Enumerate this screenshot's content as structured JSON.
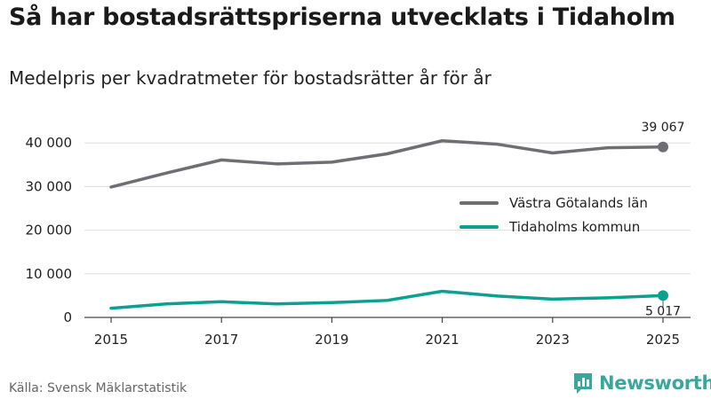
{
  "title": "Så har bostadsrättspriserna utvecklats i Tidaholm",
  "subtitle": "Medelpris per kvadratmeter för bostadsrätter år för år",
  "source": "Källa: Svensk Mäklarstatistik",
  "brand": "Newsworthy",
  "colors": {
    "vastra": "#6f6e73",
    "tidaholm": "#0aa191",
    "grid": "#dddddd",
    "brand": "#3aa79c"
  },
  "chart_data": {
    "type": "line",
    "title": "Så har bostadsrättspriserna utvecklats i Tidaholm",
    "subtitle": "Medelpris per kvadratmeter för bostadsrätter år för år",
    "xlabel": "",
    "ylabel": "",
    "x": [
      2015,
      2016,
      2017,
      2018,
      2019,
      2020,
      2021,
      2022,
      2023,
      2024,
      2025
    ],
    "x_ticks": [
      2015,
      2017,
      2019,
      2021,
      2023,
      2025
    ],
    "y_ticks": [
      0,
      10000,
      20000,
      30000,
      40000
    ],
    "y_tick_labels": [
      "0",
      "10 000",
      "20 000",
      "30 000",
      "40 000"
    ],
    "ylim": [
      0,
      45000
    ],
    "grid": true,
    "legend_position": "right",
    "series": [
      {
        "name": "Västra Götalands län",
        "values": [
          29900,
          33100,
          36100,
          35200,
          35600,
          37500,
          40500,
          39700,
          37700,
          38900,
          39067
        ],
        "end_label": "39 067"
      },
      {
        "name": "Tidaholms kommun",
        "values": [
          2100,
          3100,
          3600,
          3100,
          3400,
          3900,
          6000,
          4900,
          4200,
          4500,
          5017
        ],
        "end_label": "5 017"
      }
    ]
  }
}
